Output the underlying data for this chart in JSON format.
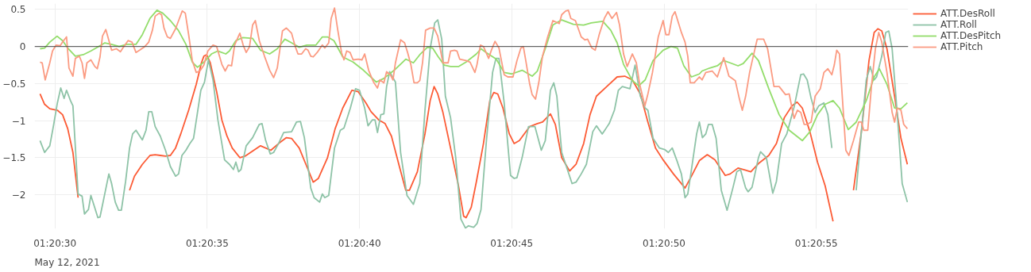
{
  "chart_data": {
    "type": "line",
    "xlim": [
      "2021-05-12T01:20:29.33",
      "2021-05-12T01:20:58.02"
    ],
    "ylim": [
      -2.46,
      0.58
    ],
    "xticks": [
      {
        "value": "2021-05-12T01:20:30",
        "label": "01:20:30"
      },
      {
        "value": "2021-05-12T01:20:35",
        "label": "01:20:35"
      },
      {
        "value": "2021-05-12T01:20:40",
        "label": "01:20:40"
      },
      {
        "value": "2021-05-12T01:20:45",
        "label": "01:20:45"
      },
      {
        "value": "2021-05-12T01:20:50",
        "label": "01:20:50"
      },
      {
        "value": "2021-05-12T01:20:55",
        "label": "01:20:55"
      }
    ],
    "yticks": [
      {
        "value": -2,
        "label": "−2"
      },
      {
        "value": -1.5,
        "label": "−1.5"
      },
      {
        "value": -1,
        "label": "−1"
      },
      {
        "value": -0.5,
        "label": "−0.5"
      },
      0,
      0.5
    ],
    "grid": true,
    "legend": "top right",
    "line_style": "solid",
    "ref_lines": [
      {
        "axis": "y",
        "value": 0,
        "color": "#444444"
      }
    ],
    "annotations": [
      "May 12, 2021"
    ],
    "series": [
      {
        "name": "ATT.DesRoll",
        "color": "#fc5b35",
        "x": [
          "2021-05-12T01:20:29.51",
          "2021-05-12T01:20:29.66",
          "2021-05-12T01:20:29.83",
          "2021-05-12T01:20:30.08",
          "2021-05-12T01:20:30.25",
          "2021-05-12T01:20:30.42",
          "2021-05-12T01:20:30.59",
          "2021-05-12T01:20:30.76",
          "2021-05-12T01:20:30.89",
          "2021-05-12T01:20:31.50",
          "2021-05-12T01:20:32.19",
          "2021-05-12T01:20:32.45",
          "2021-05-12T01:20:32.61",
          "2021-05-12T01:20:32.87",
          "2021-05-12T01:20:33.12",
          "2021-05-12T01:20:33.29",
          "2021-05-12T01:20:33.46",
          "2021-05-12T01:20:33.63",
          "2021-05-12T01:20:33.79",
          "2021-05-12T01:20:33.96",
          "2021-05-12T01:20:34.13",
          "2021-05-12T01:20:34.39",
          "2021-05-12T01:20:34.64",
          "2021-05-12T01:20:34.81",
          "2021-05-12T01:20:34.89",
          "2021-05-12T01:20:34.98",
          "2021-05-12T01:20:35.10",
          "2021-05-12T01:20:35.31",
          "2021-05-12T01:20:35.48",
          "2021-05-12T01:20:35.65",
          "2021-05-12T01:20:35.82",
          "2021-05-12T01:20:36.07",
          "2021-05-12T01:20:36.24",
          "2021-05-12T01:20:36.49",
          "2021-05-12T01:20:36.75",
          "2021-05-12T01:20:37.09",
          "2021-05-12T01:20:37.34",
          "2021-05-12T01:20:37.60",
          "2021-05-12T01:20:37.77",
          "2021-05-12T01:20:38.02",
          "2021-05-12T01:20:38.27",
          "2021-05-12T01:20:38.48",
          "2021-05-12T01:20:38.65",
          "2021-05-12T01:20:38.95",
          "2021-05-12T01:20:39.20",
          "2021-05-12T01:20:39.45",
          "2021-05-12T01:20:39.75",
          "2021-05-12T01:20:39.96",
          "2021-05-12T01:20:40.21",
          "2021-05-12T01:20:40.38",
          "2021-05-12T01:20:40.63",
          "2021-05-12T01:20:40.84",
          "2021-05-12T01:20:41.05",
          "2021-05-12T01:20:41.31",
          "2021-05-12T01:20:41.52",
          "2021-05-12T01:20:41.64",
          "2021-05-12T01:20:41.90",
          "2021-05-12T01:20:42.15",
          "2021-05-12T01:20:42.32",
          "2021-05-12T01:20:42.45",
          "2021-05-12T01:20:42.57",
          "2021-05-12T01:20:42.74",
          "2021-05-12T01:20:42.99",
          "2021-05-12T01:20:43.25",
          "2021-05-12T01:20:43.42",
          "2021-05-12T01:20:43.50",
          "2021-05-12T01:20:43.67",
          "2021-05-12T01:20:43.84",
          "2021-05-12T01:20:44.07",
          "2021-05-12T01:20:44.28",
          "2021-05-12T01:20:44.41",
          "2021-05-12T01:20:44.54",
          "2021-05-12T01:20:44.71",
          "2021-05-12T01:20:44.92",
          "2021-05-12T01:20:45.08",
          "2021-05-12T01:20:45.25",
          "2021-05-12T01:20:45.59",
          "2021-05-12T01:20:45.84",
          "2021-05-12T01:20:46.01",
          "2021-05-12T01:20:46.27",
          "2021-05-12T01:20:46.43",
          "2021-05-12T01:20:46.64",
          "2021-05-12T01:20:46.90",
          "2021-05-12T01:20:47.11",
          "2021-05-12T01:20:47.36",
          "2021-05-12T01:20:47.57",
          "2021-05-12T01:20:47.78",
          "2021-05-12T01:20:48.12",
          "2021-05-12T01:20:48.46",
          "2021-05-12T01:20:48.71",
          "2021-05-12T01:20:48.96",
          "2021-05-12T01:20:49.22",
          "2021-05-12T01:20:49.47",
          "2021-05-12T01:20:49.72",
          "2021-05-12T01:20:49.97",
          "2021-05-12T01:20:50.31",
          "2021-05-12T01:20:50.69",
          "2021-05-12T01:20:50.90",
          "2021-05-12T01:20:51.16",
          "2021-05-12T01:20:51.42",
          "2021-05-12T01:20:51.67",
          "2021-05-12T01:20:52.01",
          "2021-05-12T01:20:52.17",
          "2021-05-12T01:20:52.43",
          "2021-05-12T01:20:52.68",
          "2021-05-12T01:20:52.85",
          "2021-05-12T01:20:53.10",
          "2021-05-12T01:20:53.44",
          "2021-05-12T01:20:53.69",
          "2021-05-12T01:20:53.95",
          "2021-05-12T01:20:54.20",
          "2021-05-12T01:20:54.37",
          "2021-05-12T01:20:54.54",
          "2021-05-12T01:20:54.79",
          "2021-05-12T01:20:55.04",
          "2021-05-12T01:20:55.29",
          "2021-05-12T01:20:55.55",
          "2021-05-12T01:20:55.63",
          "2021-05-12T01:20:55.80",
          "2021-05-12T01:20:55.93",
          "2021-05-12T01:20:56.22",
          "2021-05-12T01:20:56.48",
          "2021-05-12T01:20:56.73",
          "2021-05-12T01:20:56.90",
          "2021-05-12T01:20:57.02",
          "2021-05-12T01:20:57.15",
          "2021-05-12T01:20:57.32",
          "2021-05-12T01:20:57.57",
          "2021-05-12T01:20:57.78",
          "2021-05-12T01:20:57.99"
        ],
        "values": [
          -0.64,
          -0.78,
          -0.84,
          -0.86,
          -0.92,
          -1.11,
          -1.43,
          -2.04,
          null,
          null,
          null,
          -1.94,
          -1.75,
          -1.59,
          -1.47,
          -1.46,
          -1.47,
          -1.48,
          -1.47,
          -1.37,
          -1.18,
          -0.86,
          -0.51,
          -0.22,
          -0.13,
          -0.11,
          -0.22,
          -0.61,
          -0.99,
          -1.21,
          -1.37,
          -1.5,
          -1.48,
          -1.41,
          -1.34,
          -1.4,
          -1.31,
          -1.23,
          -1.24,
          -1.37,
          -1.62,
          -1.83,
          -1.78,
          -1.5,
          -1.11,
          -0.83,
          -0.59,
          -0.61,
          -0.76,
          -0.88,
          -0.99,
          -1.04,
          -1.21,
          -1.62,
          -1.94,
          -1.94,
          -1.69,
          -1.18,
          -0.73,
          -0.54,
          -0.64,
          -0.89,
          -1.37,
          -1.88,
          -2.29,
          -2.31,
          -2.17,
          -1.82,
          -1.31,
          -0.73,
          -0.62,
          -0.64,
          -0.83,
          -1.18,
          -1.31,
          -1.27,
          -1.08,
          -1.04,
          -1.02,
          -0.91,
          -1.05,
          -1.5,
          -1.68,
          -1.59,
          -1.31,
          -0.92,
          -0.67,
          -0.54,
          -0.41,
          -0.4,
          -0.45,
          -0.64,
          -1.02,
          -1.37,
          -1.53,
          -1.72,
          -1.91,
          -1.75,
          -1.54,
          -1.46,
          -1.53,
          -1.74,
          -1.72,
          -1.64,
          -1.67,
          -1.69,
          -1.58,
          -1.47,
          -1.31,
          -0.96,
          -0.8,
          -0.75,
          -0.83,
          -1.15,
          -1.56,
          -1.88,
          -2.36,
          null,
          null,
          null,
          -1.94,
          -1.15,
          -0.19,
          0.19,
          0.24,
          0.21,
          -0.03,
          -0.67,
          -1.24,
          -1.59
        ]
      },
      {
        "name": "ATT.Roll",
        "color": "#8ec3a7",
        "x": [
          "2021-05-12T01:20:29.51",
          "2021-05-12T01:20:29.66",
          "2021-05-12T01:20:29.83",
          "2021-05-12T01:20:29.96",
          "2021-05-12T01:20:30.08",
          "2021-05-12T01:20:30.19",
          "2021-05-12T01:20:30.30",
          "2021-05-12T01:20:30.38",
          "2021-05-12T01:20:30.51",
          "2021-05-12T01:20:30.59",
          "2021-05-12T01:20:30.76",
          "2021-05-12T01:20:30.89",
          "2021-05-12T01:20:30.97",
          "2021-05-12T01:20:31.10",
          "2021-05-12T01:20:31.18",
          "2021-05-12T01:20:31.41",
          "2021-05-12T01:20:31.48",
          "2021-05-12T01:20:31.64",
          "2021-05-12T01:20:31.77",
          "2021-05-12T01:20:31.86",
          "2021-05-12T01:20:31.98",
          "2021-05-12T01:20:32.09",
          "2021-05-12T01:20:32.18",
          "2021-05-12T01:20:32.32",
          "2021-05-12T01:20:32.45",
          "2021-05-12T01:20:32.55",
          "2021-05-12T01:20:32.66",
          "2021-05-12T01:20:32.87",
          "2021-05-12T01:20:32.99",
          "2021-05-12T01:20:33.08",
          "2021-05-12T01:20:33.18",
          "2021-05-12T01:20:33.29",
          "2021-05-12T01:20:33.46",
          "2021-05-12T01:20:33.63",
          "2021-05-12T01:20:33.79",
          "2021-05-12T01:20:33.96",
          "2021-05-12T01:20:34.06",
          "2021-05-12T01:20:34.17",
          "2021-05-12T01:20:34.30",
          "2021-05-12T01:20:34.43",
          "2021-05-12T01:20:34.55",
          "2021-05-12T01:20:34.68",
          "2021-05-12T01:20:34.79",
          "2021-05-12T01:20:34.91",
          "2021-05-12T01:20:35.04",
          "2021-05-12T01:20:35.19",
          "2021-05-12T01:20:35.35",
          "2021-05-12T01:20:35.57",
          "2021-05-12T01:20:35.73",
          "2021-05-12T01:20:35.86",
          "2021-05-12T01:20:35.94",
          "2021-05-12T01:20:36.03",
          "2021-05-12T01:20:36.11",
          "2021-05-12T01:20:36.28",
          "2021-05-12T01:20:36.49",
          "2021-05-12T01:20:36.71",
          "2021-05-12T01:20:36.80",
          "2021-05-12T01:20:36.92",
          "2021-05-12T01:20:37.07",
          "2021-05-12T01:20:37.18",
          "2021-05-12T01:20:37.34",
          "2021-05-12T01:20:37.51",
          "2021-05-12T01:20:37.77",
          "2021-05-12T01:20:37.93",
          "2021-05-12T01:20:38.06",
          "2021-05-12T01:20:38.19",
          "2021-05-12T01:20:38.40",
          "2021-05-12T01:20:38.51",
          "2021-05-12T01:20:38.69",
          "2021-05-12T01:20:38.78",
          "2021-05-12T01:20:38.86",
          "2021-05-12T01:20:38.99",
          "2021-05-12T01:20:39.18",
          "2021-05-12T01:20:39.37",
          "2021-05-12T01:20:39.49",
          "2021-05-12T01:20:39.70",
          "2021-05-12T01:20:39.87",
          "2021-05-12T01:20:40.00",
          "2021-05-12T01:20:40.17",
          "2021-05-12T01:20:40.28",
          "2021-05-12T01:20:40.42",
          "2021-05-12T01:20:40.51",
          "2021-05-12T01:20:40.59",
          "2021-05-12T01:20:40.70",
          "2021-05-12T01:20:40.80",
          "2021-05-12T01:20:40.89",
          "2021-05-12T01:20:40.99",
          "2021-05-12T01:20:41.18",
          "2021-05-12T01:20:41.35",
          "2021-05-12T01:20:41.56",
          "2021-05-12T01:20:41.77",
          "2021-05-12T01:20:41.98",
          "2021-05-12T01:20:42.15",
          "2021-05-12T01:20:42.32",
          "2021-05-12T01:20:42.47",
          "2021-05-12T01:20:42.57",
          "2021-05-12T01:20:42.70",
          "2021-05-12T01:20:42.82",
          "2021-05-12T01:20:42.99",
          "2021-05-12T01:20:43.16",
          "2021-05-12T01:20:43.33",
          "2021-05-12T01:20:43.48",
          "2021-05-12T01:20:43.58",
          "2021-05-12T01:20:43.75",
          "2021-05-12T01:20:43.86",
          "2021-05-12T01:20:43.99",
          "2021-05-12T01:20:44.16",
          "2021-05-12T01:20:44.37",
          "2021-05-12T01:20:44.48",
          "2021-05-12T01:20:44.58",
          "2021-05-12T01:20:44.75",
          "2021-05-12T01:20:44.96",
          "2021-05-12T01:20:45.08",
          "2021-05-12T01:20:45.17",
          "2021-05-12T01:20:45.34",
          "2021-05-12T01:20:45.55",
          "2021-05-12T01:20:45.76",
          "2021-05-12T01:20:45.97",
          "2021-05-12T01:20:46.10",
          "2021-05-12T01:20:46.27",
          "2021-05-12T01:20:46.38",
          "2021-05-12T01:20:46.48",
          "2021-05-12T01:20:46.64",
          "2021-05-12T01:20:46.85",
          "2021-05-12T01:20:46.98",
          "2021-05-12T01:20:47.11",
          "2021-05-12T01:20:47.28",
          "2021-05-12T01:20:47.45",
          "2021-05-12T01:20:47.66",
          "2021-05-12T01:20:47.78",
          "2021-05-12T01:20:47.97",
          "2021-05-12T01:20:48.20",
          "2021-05-12T01:20:48.37",
          "2021-05-12T01:20:48.50",
          "2021-05-12T01:20:48.63",
          "2021-05-12T01:20:48.88",
          "2021-05-12T01:20:49.05",
          "2021-05-12T01:20:49.22",
          "2021-05-12T01:20:49.38",
          "2021-05-12T01:20:49.47",
          "2021-05-12T01:20:49.64",
          "2021-05-12T01:20:49.85",
          "2021-05-12T01:20:50.02",
          "2021-05-12T01:20:50.14",
          "2021-05-12T01:20:50.27",
          "2021-05-12T01:20:50.44",
          "2021-05-12T01:20:50.57",
          "2021-05-12T01:20:50.69",
          "2021-05-12T01:20:50.78",
          "2021-05-12T01:20:50.90",
          "2021-05-12T01:20:51.07",
          "2021-05-12T01:20:51.16",
          "2021-05-12T01:20:51.26",
          "2021-05-12T01:20:51.37",
          "2021-05-12T01:20:51.46",
          "2021-05-12T01:20:51.58",
          "2021-05-12T01:20:51.71",
          "2021-05-12T01:20:51.88",
          "2021-05-12T01:20:52.07",
          "2021-05-12T01:20:52.26",
          "2021-05-12T01:20:52.39",
          "2021-05-12T01:20:52.51",
          "2021-05-12T01:20:52.68",
          "2021-05-12T01:20:52.76",
          "2021-05-12T01:20:52.89",
          "2021-05-12T01:20:53.10",
          "2021-05-12T01:20:53.17",
          "2021-05-12T01:20:53.36",
          "2021-05-12T01:20:53.57",
          "2021-05-12T01:20:53.69",
          "2021-05-12T01:20:53.86",
          "2021-05-12T01:20:54.03",
          "2021-05-12T01:20:54.28",
          "2021-05-12T01:20:54.49",
          "2021-05-12T01:20:54.58",
          "2021-05-12T01:20:54.70",
          "2021-05-12T01:20:54.83",
          "2021-05-12T01:20:54.96",
          "2021-05-12T01:20:55.08",
          "2021-05-12T01:20:55.25",
          "2021-05-12T01:20:55.38",
          "2021-05-12T01:20:55.51",
          "2021-05-12T01:20:55.61",
          "2021-05-12T01:20:55.90",
          "2021-05-12T01:20:56.18",
          "2021-05-12T01:20:56.31",
          "2021-05-12T01:20:56.48",
          "2021-05-12T01:20:56.64",
          "2021-05-12T01:20:56.77",
          "2021-05-12T01:20:56.90",
          "2021-05-12T01:20:56.98",
          "2021-05-12T01:20:57.15",
          "2021-05-12T01:20:57.28",
          "2021-05-12T01:20:57.38",
          "2021-05-12T01:20:57.49",
          "2021-05-12T01:20:57.66",
          "2021-05-12T01:20:57.82",
          "2021-05-12T01:20:57.99"
        ],
        "values": [
          -1.27,
          -1.43,
          -1.34,
          -1.05,
          -0.76,
          -0.56,
          -0.7,
          -0.59,
          -0.73,
          -0.8,
          -1.99,
          -2.02,
          -2.26,
          -2.2,
          -2.01,
          -2.31,
          -2.3,
          -1.98,
          -1.72,
          -1.85,
          -2.1,
          -2.21,
          -2.21,
          -1.82,
          -1.37,
          -1.18,
          -1.13,
          -1.26,
          -1.13,
          -0.88,
          -0.88,
          -1.08,
          -1.21,
          -1.4,
          -1.62,
          -1.75,
          -1.72,
          -1.47,
          -1.4,
          -1.31,
          -1.24,
          -0.89,
          -0.59,
          -0.48,
          -0.18,
          -0.45,
          -0.99,
          -1.53,
          -1.59,
          -1.66,
          -1.56,
          -1.69,
          -1.66,
          -1.34,
          -1.23,
          -1.05,
          -1.04,
          -1.27,
          -1.45,
          -1.43,
          -1.31,
          -1.16,
          -1.15,
          -1.02,
          -1.01,
          -1.23,
          -1.91,
          -2.04,
          -2.1,
          -1.99,
          -2.04,
          -2.01,
          -1.37,
          -1.13,
          -1.1,
          -0.83,
          -0.57,
          -0.59,
          -0.83,
          -1.07,
          -0.99,
          -0.99,
          -1.16,
          -0.92,
          -0.91,
          -0.54,
          -0.34,
          -0.48,
          -1.43,
          -2.01,
          -2.13,
          -1.85,
          -0.86,
          -0.03,
          0.32,
          0.36,
          0.1,
          -0.67,
          -0.96,
          -1.5,
          -2.33,
          -2.45,
          -2.42,
          -2.44,
          -2.39,
          -2.2,
          -1.31,
          -0.35,
          -0.16,
          -0.16,
          -0.76,
          -1.74,
          -1.78,
          -1.77,
          -1.5,
          -1.08,
          -1.08,
          -1.4,
          -1.27,
          -0.59,
          -0.49,
          -0.67,
          -1.43,
          -1.69,
          -1.85,
          -1.83,
          -1.72,
          -1.59,
          -1.15,
          -1.07,
          -1.18,
          -1.04,
          -0.86,
          -0.59,
          -0.54,
          -0.57,
          -0.25,
          -0.67,
          -0.83,
          -0.86,
          -1.24,
          -1.37,
          -1.39,
          -1.43,
          -1.37,
          -1.56,
          -1.72,
          -2.04,
          -1.99,
          -1.66,
          -1.18,
          -1.02,
          -1.23,
          -1.18,
          -1.05,
          -1.05,
          -1.24,
          -1.94,
          -2.21,
          -1.91,
          -1.69,
          -1.66,
          -1.91,
          -1.96,
          -1.9,
          -1.5,
          -1.42,
          -1.5,
          -1.98,
          -1.82,
          -1.31,
          -1.18,
          -0.8,
          -0.38,
          -0.37,
          -0.45,
          -0.7,
          -0.89,
          -0.8,
          -0.76,
          -0.92,
          -1.37,
          null,
          null,
          null,
          -1.94,
          -1.15,
          -0.45,
          -0.27,
          -0.45,
          -0.41,
          -0.13,
          0.19,
          0.21,
          -0.03,
          -0.92,
          -1.85,
          -2.1
        ]
      },
      {
        "name": "ATT.DesPitch",
        "color": "#93dd6b",
        "x": [
          "2021-05-12T01:20:29.51",
          "2021-05-12T01:20:29.66",
          "2021-05-12T01:20:29.83",
          "2021-05-12T01:20:30.07",
          "2021-05-12T01:20:30.25",
          "2021-05-12T01:20:30.42",
          "2021-05-12T01:20:30.67",
          "2021-05-12T01:20:30.93",
          "2021-05-12T01:20:31.18",
          "2021-05-12T01:20:31.43",
          "2021-05-12T01:20:31.64",
          "2021-05-12T01:20:31.85",
          "2021-05-12T01:20:32.11",
          "2021-05-12T01:20:32.36",
          "2021-05-12T01:20:32.66",
          "2021-05-12T01:20:32.87",
          "2021-05-12T01:20:33.12",
          "2021-05-12T01:20:33.35",
          "2021-05-12T01:20:33.54",
          "2021-05-12T01:20:33.79",
          "2021-05-12T01:20:34.05",
          "2021-05-12T01:20:34.30",
          "2021-05-12T01:20:34.51",
          "2021-05-12T01:20:34.68",
          "2021-05-12T01:20:34.89",
          "2021-05-12T01:20:35.14",
          "2021-05-12T01:20:35.35",
          "2021-05-12T01:20:35.61",
          "2021-05-12T01:20:35.73",
          "2021-05-12T01:20:35.94",
          "2021-05-12T01:20:36.16",
          "2021-05-12T01:20:36.49",
          "2021-05-12T01:20:36.75",
          "2021-05-12T01:20:37.05",
          "2021-05-12T01:20:37.30",
          "2021-05-12T01:20:37.55",
          "2021-05-12T01:20:37.77",
          "2021-05-12T01:20:38.02",
          "2021-05-12T01:20:38.27",
          "2021-05-12T01:20:38.57",
          "2021-05-12T01:20:38.78",
          "2021-05-12T01:20:38.95",
          "2021-05-12T01:20:39.16",
          "2021-05-12T01:20:39.45",
          "2021-05-12T01:20:39.79",
          "2021-05-12T01:20:40.13",
          "2021-05-12T01:20:40.55",
          "2021-05-12T01:20:40.80",
          "2021-05-12T01:20:41.14",
          "2021-05-12T01:20:41.52",
          "2021-05-12T01:20:41.77",
          "2021-05-12T01:20:41.98",
          "2021-05-12T01:20:42.23",
          "2021-05-12T01:20:42.40",
          "2021-05-12T01:20:42.57",
          "2021-05-12T01:20:42.78",
          "2021-05-12T01:20:42.99",
          "2021-05-12T01:20:43.25",
          "2021-05-12T01:20:43.50",
          "2021-05-12T01:20:43.84",
          "2021-05-12T01:20:43.99",
          "2021-05-12T01:20:44.16",
          "2021-05-12T01:20:44.49",
          "2021-05-12T01:20:44.75",
          "2021-05-12T01:20:45.00",
          "2021-05-12T01:20:45.34",
          "2021-05-12T01:20:45.67",
          "2021-05-12T01:20:45.84",
          "2021-05-12T01:20:46.10",
          "2021-05-12T01:20:46.35",
          "2021-05-12T01:20:46.64",
          "2021-05-12T01:20:47.02",
          "2021-05-12T01:20:47.36",
          "2021-05-12T01:20:47.61",
          "2021-05-12T01:20:47.99",
          "2021-05-12T01:20:48.25",
          "2021-05-12T01:20:48.46",
          "2021-05-12T01:20:48.67",
          "2021-05-12T01:20:48.96",
          "2021-05-12T01:20:49.17",
          "2021-05-12T01:20:49.38",
          "2021-05-12T01:20:49.64",
          "2021-05-12T01:20:49.97",
          "2021-05-12T01:20:50.23",
          "2021-05-12T01:20:50.44",
          "2021-05-12T01:20:50.65",
          "2021-05-12T01:20:50.90",
          "2021-05-12T01:20:51.16",
          "2021-05-12T01:20:51.25",
          "2021-05-12T01:20:51.50",
          "2021-05-12T01:20:51.75",
          "2021-05-12T01:20:51.96",
          "2021-05-12T01:20:52.17",
          "2021-05-12T01:20:52.43",
          "2021-05-12T01:20:52.60",
          "2021-05-12T01:20:52.89",
          "2021-05-12T01:20:53.10",
          "2021-05-12T01:20:53.44",
          "2021-05-12T01:20:53.78",
          "2021-05-12T01:20:54.11",
          "2021-05-12T01:20:54.54",
          "2021-05-12T01:20:54.79",
          "2021-05-12T01:20:55.04",
          "2021-05-12T01:20:55.29",
          "2021-05-12T01:20:55.55",
          "2021-05-12T01:20:55.76",
          "2021-05-12T01:20:56.05",
          "2021-05-12T01:20:56.31",
          "2021-05-12T01:20:56.64",
          "2021-05-12T01:20:56.90",
          "2021-05-12T01:20:57.07",
          "2021-05-12T01:20:57.32",
          "2021-05-12T01:20:57.57",
          "2021-05-12T01:20:57.78",
          "2021-05-12T01:20:57.99"
        ],
        "values": [
          -0.03,
          -0.02,
          0.06,
          0.14,
          0.08,
          -0.02,
          -0.13,
          -0.11,
          -0.06,
          0.0,
          0.05,
          0.03,
          0.0,
          0.03,
          0.03,
          0.16,
          0.38,
          0.49,
          0.45,
          0.35,
          0.22,
          0.03,
          -0.21,
          -0.28,
          -0.21,
          -0.1,
          -0.06,
          -0.1,
          -0.06,
          0.08,
          0.12,
          0.11,
          -0.05,
          -0.1,
          -0.03,
          0.1,
          0.05,
          -0.01,
          0.02,
          0.02,
          0.13,
          0.13,
          0.08,
          -0.14,
          -0.21,
          -0.32,
          -0.48,
          -0.43,
          -0.32,
          -0.17,
          -0.22,
          -0.11,
          -0.01,
          -0.02,
          -0.13,
          -0.25,
          -0.27,
          -0.27,
          -0.21,
          -0.1,
          -0.03,
          -0.08,
          -0.17,
          -0.35,
          -0.37,
          -0.32,
          -0.4,
          -0.33,
          -0.03,
          0.29,
          0.36,
          0.3,
          0.29,
          0.32,
          0.34,
          0.22,
          0.05,
          -0.24,
          -0.46,
          -0.53,
          -0.45,
          -0.19,
          -0.05,
          0.0,
          -0.02,
          -0.26,
          -0.41,
          -0.37,
          -0.33,
          -0.29,
          -0.26,
          -0.19,
          -0.22,
          -0.26,
          -0.23,
          -0.09,
          -0.19,
          -0.57,
          -0.92,
          -1.13,
          -1.27,
          -1.15,
          -0.92,
          -0.78,
          -0.73,
          -0.83,
          -1.12,
          -1.02,
          -0.73,
          -0.41,
          -0.3,
          -0.51,
          -0.83,
          -0.84,
          -0.76
        ]
      },
      {
        "name": "ATT.Pitch",
        "color": "#fb9b82",
        "x": [
          "2021-05-12T01:20:29.51",
          "2021-05-12T01:20:29.58",
          "2021-05-12T01:20:29.68",
          "2021-05-12T01:20:29.83",
          "2021-05-12T01:20:29.92",
          "2021-05-12T01:20:30.04",
          "2021-05-12T01:20:30.17",
          "2021-05-12T01:20:30.25",
          "2021-05-12T01:20:30.38",
          "2021-05-12T01:20:30.46",
          "2021-05-12T01:20:30.59",
          "2021-05-12T01:20:30.67",
          "2021-05-12T01:20:30.80",
          "2021-05-12T01:20:30.89",
          "2021-05-12T01:20:30.97",
          "2021-05-12T01:20:31.05",
          "2021-05-12T01:20:31.18",
          "2021-05-12T01:20:31.31",
          "2021-05-12T01:20:31.39",
          "2021-05-12T01:20:31.48",
          "2021-05-12T01:20:31.56",
          "2021-05-12T01:20:31.67",
          "2021-05-12T01:20:31.86",
          "2021-05-12T01:20:32.02",
          "2021-05-12T01:20:32.15",
          "2021-05-12T01:20:32.23",
          "2021-05-12T01:20:32.40",
          "2021-05-12T01:20:32.53",
          "2021-05-12T01:20:32.66",
          "2021-05-12T01:20:32.78",
          "2021-05-12T01:20:32.95",
          "2021-05-12T01:20:33.08",
          "2021-05-12T01:20:33.20",
          "2021-05-12T01:20:33.29",
          "2021-05-12T01:20:33.42",
          "2021-05-12T01:20:33.50",
          "2021-05-12T01:20:33.58",
          "2021-05-12T01:20:33.69",
          "2021-05-12T01:20:33.79",
          "2021-05-12T01:20:33.96",
          "2021-05-12T01:20:34.06",
          "2021-05-12T01:20:34.18",
          "2021-05-12T01:20:34.28",
          "2021-05-12T01:20:34.39",
          "2021-05-12T01:20:34.51",
          "2021-05-12T01:20:34.64",
          "2021-05-12T01:20:34.76",
          "2021-05-12T01:20:34.89",
          "2021-05-12T01:20:35.02",
          "2021-05-12T01:20:35.19",
          "2021-05-12T01:20:35.31",
          "2021-05-12T01:20:35.48",
          "2021-05-12T01:20:35.59",
          "2021-05-12T01:20:35.69",
          "2021-05-12T01:20:35.80",
          "2021-05-12T01:20:35.90",
          "2021-05-12T01:20:36.07",
          "2021-05-12T01:20:36.18",
          "2021-05-12T01:20:36.28",
          "2021-05-12T01:20:36.39",
          "2021-05-12T01:20:36.49",
          "2021-05-12T01:20:36.58",
          "2021-05-12T01:20:36.71",
          "2021-05-12T01:20:36.88",
          "2021-05-12T01:20:37.05",
          "2021-05-12T01:20:37.18",
          "2021-05-12T01:20:37.30",
          "2021-05-12T01:20:37.47",
          "2021-05-12T01:20:37.60",
          "2021-05-12T01:20:37.77",
          "2021-05-12T01:20:37.89",
          "2021-05-12T01:20:37.98",
          "2021-05-12T01:20:38.10",
          "2021-05-12T01:20:38.23",
          "2021-05-12T01:20:38.31",
          "2021-05-12T01:20:38.40",
          "2021-05-12T01:20:38.48",
          "2021-05-12T01:20:38.61",
          "2021-05-12T01:20:38.78",
          "2021-05-12T01:20:38.86",
          "2021-05-12T01:20:38.99",
          "2021-05-12T01:20:39.07",
          "2021-05-12T01:20:39.18",
          "2021-05-12T01:20:39.28",
          "2021-05-12T01:20:39.41",
          "2021-05-12T01:20:39.49",
          "2021-05-12T01:20:39.58",
          "2021-05-12T01:20:39.69",
          "2021-05-12T01:20:39.79",
          "2021-05-12T01:20:39.96",
          "2021-05-12T01:20:40.08",
          "2021-05-12T01:20:40.17",
          "2021-05-12T01:20:40.30",
          "2021-05-12T01:20:40.46",
          "2021-05-12T01:20:40.59",
          "2021-05-12T01:20:40.67",
          "2021-05-12T01:20:40.80",
          "2021-05-12T01:20:40.89",
          "2021-05-12T01:20:41.01",
          "2021-05-12T01:20:41.10",
          "2021-05-12T01:20:41.18",
          "2021-05-12T01:20:41.35",
          "2021-05-12T01:20:41.48",
          "2021-05-12T01:20:41.58",
          "2021-05-12T01:20:41.69",
          "2021-05-12T01:20:41.79",
          "2021-05-12T01:20:41.90",
          "2021-05-12T01:20:41.98",
          "2021-05-12T01:20:42.07",
          "2021-05-12T01:20:42.17",
          "2021-05-12T01:20:42.32",
          "2021-05-12T01:20:42.45",
          "2021-05-12T01:20:42.57",
          "2021-05-12T01:20:42.74",
          "2021-05-12T01:20:42.91",
          "2021-05-12T01:20:42.99",
          "2021-05-12T01:20:43.12",
          "2021-05-12T01:20:43.20",
          "2021-05-12T01:20:43.29",
          "2021-05-12T01:20:43.50",
          "2021-05-12T01:20:43.63",
          "2021-05-12T01:20:43.79",
          "2021-05-12T01:20:43.86",
          "2021-05-12T01:20:43.97",
          "2021-05-12T01:20:44.07",
          "2021-05-12T01:20:44.24",
          "2021-05-12T01:20:44.33",
          "2021-05-12T01:20:44.45",
          "2021-05-12T01:20:44.58",
          "2021-05-12T01:20:44.75",
          "2021-05-12T01:20:44.87",
          "2021-05-12T01:20:45.04",
          "2021-05-12T01:20:45.17",
          "2021-05-12T01:20:45.30",
          "2021-05-12T01:20:45.38",
          "2021-05-12T01:20:45.46",
          "2021-05-12T01:20:45.59",
          "2021-05-12T01:20:45.67",
          "2021-05-12T01:20:45.78",
          "2021-05-12T01:20:45.89",
          "2021-05-12T01:20:46.01",
          "2021-05-12T01:20:46.18",
          "2021-05-12T01:20:46.35",
          "2021-05-12T01:20:46.56",
          "2021-05-12T01:20:46.64",
          "2021-05-12T01:20:46.77",
          "2021-05-12T01:20:46.86",
          "2021-05-12T01:20:46.94",
          "2021-05-12T01:20:47.09",
          "2021-05-12T01:20:47.28",
          "2021-05-12T01:20:47.40",
          "2021-05-12T01:20:47.49",
          "2021-05-12T01:20:47.63",
          "2021-05-12T01:20:47.74",
          "2021-05-12T01:20:47.87",
          "2021-05-12T01:20:48.04",
          "2021-05-12T01:20:48.16",
          "2021-05-12T01:20:48.29",
          "2021-05-12T01:20:48.44",
          "2021-05-12T01:20:48.54",
          "2021-05-12T01:20:48.67",
          "2021-05-12T01:20:48.79",
          "2021-05-12T01:20:48.96",
          "2021-05-12T01:20:49.09",
          "2021-05-12T01:20:49.20",
          "2021-05-12T01:20:49.37",
          "2021-05-12T01:20:49.47",
          "2021-05-12T01:20:49.62",
          "2021-05-12T01:20:49.81",
          "2021-05-12T01:20:49.97",
          "2021-05-12T01:20:50.06",
          "2021-05-12T01:20:50.16",
          "2021-05-12T01:20:50.27",
          "2021-05-12T01:20:50.36",
          "2021-05-12T01:20:50.57",
          "2021-05-12T01:20:50.69",
          "2021-05-12T01:20:50.78",
          "2021-05-12T01:20:50.86",
          "2021-05-12T01:20:50.99",
          "2021-05-12T01:20:51.16",
          "2021-05-12T01:20:51.25",
          "2021-05-12T01:20:51.37",
          "2021-05-12T01:20:51.58",
          "2021-05-12T01:20:51.75",
          "2021-05-12T01:20:51.96",
          "2021-05-12T01:20:52.13",
          "2021-05-12T01:20:52.34",
          "2021-05-12T01:20:52.47",
          "2021-05-12T01:20:52.57",
          "2021-05-12T01:20:52.68",
          "2021-05-12T01:20:52.81",
          "2021-05-12T01:20:52.93",
          "2021-05-12T01:20:53.06",
          "2021-05-12T01:20:53.27",
          "2021-05-12T01:20:53.40",
          "2021-05-12T01:20:53.61",
          "2021-05-12T01:20:53.78",
          "2021-05-12T01:20:53.99",
          "2021-05-12T01:20:54.11",
          "2021-05-12T01:20:54.27",
          "2021-05-12T01:20:54.38",
          "2021-05-12T01:20:54.49",
          "2021-05-12T01:20:54.60",
          "2021-05-12T01:20:54.70",
          "2021-05-12T01:20:54.83",
          "2021-05-12T01:20:54.96",
          "2021-05-12T01:20:55.13",
          "2021-05-12T01:20:55.25",
          "2021-05-12T01:20:55.38",
          "2021-05-12T01:20:55.51",
          "2021-05-12T01:20:55.59",
          "2021-05-12T01:20:55.67",
          "2021-05-12T01:20:55.76",
          "2021-05-12T01:20:55.97",
          "2021-05-12T01:20:56.07",
          "2021-05-12T01:20:56.22",
          "2021-05-12T01:20:56.39",
          "2021-05-12T01:20:56.48",
          "2021-05-12T01:20:56.56",
          "2021-05-12T01:20:56.69",
          "2021-05-12T01:20:56.81",
          "2021-05-12T01:20:56.94",
          "2021-05-12T01:20:57.05",
          "2021-05-12T01:20:57.15",
          "2021-05-12T01:20:57.32",
          "2021-05-12T01:20:57.49",
          "2021-05-12T01:20:57.57",
          "2021-05-12T01:20:57.66",
          "2021-05-12T01:20:57.78",
          "2021-05-12T01:20:57.87",
          "2021-05-12T01:20:57.99"
        ],
        "values": [
          -0.21,
          -0.22,
          -0.45,
          -0.22,
          -0.06,
          0.02,
          0.01,
          0.06,
          0.13,
          -0.29,
          -0.4,
          -0.16,
          -0.13,
          -0.22,
          -0.43,
          -0.22,
          -0.18,
          -0.27,
          -0.3,
          -0.14,
          0.14,
          0.23,
          -0.05,
          -0.03,
          -0.07,
          -0.02,
          0.08,
          0.06,
          -0.08,
          -0.05,
          0.0,
          0.06,
          0.22,
          0.41,
          0.45,
          0.43,
          0.25,
          0.13,
          0.11,
          0.24,
          0.35,
          0.48,
          0.45,
          0.16,
          -0.19,
          -0.35,
          -0.33,
          -0.25,
          -0.06,
          0.02,
          0.0,
          -0.24,
          -0.33,
          -0.25,
          -0.26,
          0.02,
          0.18,
          0.02,
          -0.08,
          0.0,
          0.29,
          0.35,
          0.08,
          -0.13,
          -0.32,
          -0.42,
          -0.29,
          0.21,
          0.25,
          0.18,
          0.0,
          -0.1,
          -0.1,
          -0.03,
          -0.05,
          -0.13,
          -0.14,
          -0.08,
          0.02,
          -0.02,
          0.05,
          0.38,
          0.52,
          0.24,
          -0.08,
          -0.18,
          -0.06,
          -0.08,
          -0.18,
          -0.17,
          -0.18,
          -0.1,
          -0.32,
          -0.48,
          -0.56,
          -0.45,
          -0.49,
          -0.34,
          -0.38,
          -0.45,
          -0.22,
          0.09,
          0.05,
          -0.08,
          -0.25,
          -0.49,
          -0.49,
          -0.46,
          -0.22,
          0.22,
          0.25,
          0.25,
          0.14,
          -0.22,
          -0.22,
          -0.06,
          -0.05,
          -0.06,
          -0.17,
          -0.19,
          -0.21,
          -0.35,
          -0.24,
          0.02,
          0.0,
          -0.16,
          -0.05,
          0.07,
          -0.02,
          -0.38,
          -0.41,
          -0.41,
          -0.19,
          -0.02,
          0.0,
          -0.19,
          -0.51,
          -0.65,
          -0.71,
          -0.48,
          -0.13,
          0.13,
          0.35,
          0.31,
          0.43,
          0.48,
          0.49,
          0.38,
          0.35,
          0.13,
          0.09,
          0.1,
          -0.02,
          -0.05,
          0.16,
          0.38,
          0.47,
          0.38,
          0.46,
          0.29,
          -0.1,
          -0.27,
          -0.1,
          -0.22,
          -0.51,
          -0.8,
          -0.64,
          -0.35,
          0.13,
          0.35,
          0.16,
          0.16,
          0.41,
          0.47,
          0.19,
          0.06,
          -0.13,
          -0.49,
          -0.49,
          -0.41,
          -0.45,
          -0.35,
          -0.33,
          -0.41,
          -0.15,
          -0.4,
          -0.46,
          -0.7,
          -0.86,
          -0.67,
          -0.35,
          -0.13,
          0.1,
          0.1,
          -0.03,
          -0.54,
          -0.54,
          -0.65,
          -0.64,
          -0.97,
          -0.86,
          -0.89,
          -1.05,
          -1.05,
          -1.02,
          -0.67,
          -0.57,
          -0.35,
          -0.3,
          -0.38,
          -0.25,
          -0.05,
          -0.1,
          -1.4,
          -1.47,
          -1.27,
          -1.02,
          -1.02,
          -1.13,
          -1.13,
          -0.54,
          -0.03,
          0.19,
          0.06,
          -0.35,
          -0.89,
          -1.02,
          -0.83,
          -0.86,
          -1.05,
          -1.11
        ]
      }
    ]
  }
}
